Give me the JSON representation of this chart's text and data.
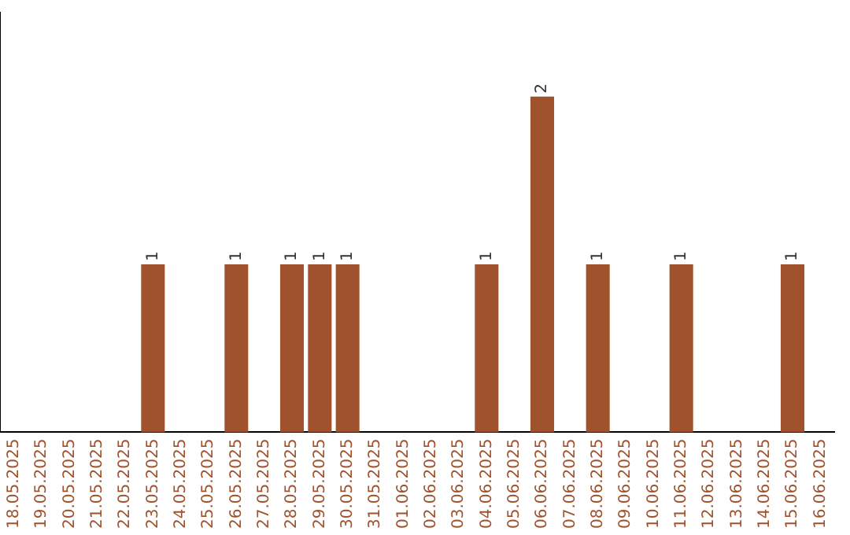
{
  "chart_data": {
    "type": "bar",
    "categories": [
      "18.05.2025",
      "19.05.2025",
      "20.05.2025",
      "21.05.2025",
      "22.05.2025",
      "23.05.2025",
      "24.05.2025",
      "25.05.2025",
      "26.05.2025",
      "27.05.2025",
      "28.05.2025",
      "29.05.2025",
      "30.05.2025",
      "31.05.2025",
      "01.06.2025",
      "02.06.2025",
      "03.06.2025",
      "04.06.2025",
      "05.06.2025",
      "06.06.2025",
      "07.06.2025",
      "08.06.2025",
      "09.06.2025",
      "10.06.2025",
      "11.06.2025",
      "12.06.2025",
      "13.06.2025",
      "14.06.2025",
      "15.06.2025",
      "16.06.2025"
    ],
    "values": [
      0,
      0,
      0,
      0,
      0,
      1,
      0,
      0,
      1,
      0,
      1,
      1,
      1,
      0,
      0,
      0,
      0,
      1,
      0,
      2,
      0,
      1,
      0,
      0,
      1,
      0,
      0,
      0,
      1,
      0
    ],
    "value_labels": [
      null,
      null,
      null,
      null,
      null,
      "1",
      null,
      null,
      "1",
      null,
      "1",
      "1",
      "1",
      null,
      null,
      null,
      null,
      "1",
      null,
      "2",
      null,
      "1",
      null,
      null,
      "1",
      null,
      null,
      null,
      "1",
      null
    ],
    "color": "#a0522d",
    "grid": false,
    "legend": false,
    "tick_labels": "x"
  }
}
